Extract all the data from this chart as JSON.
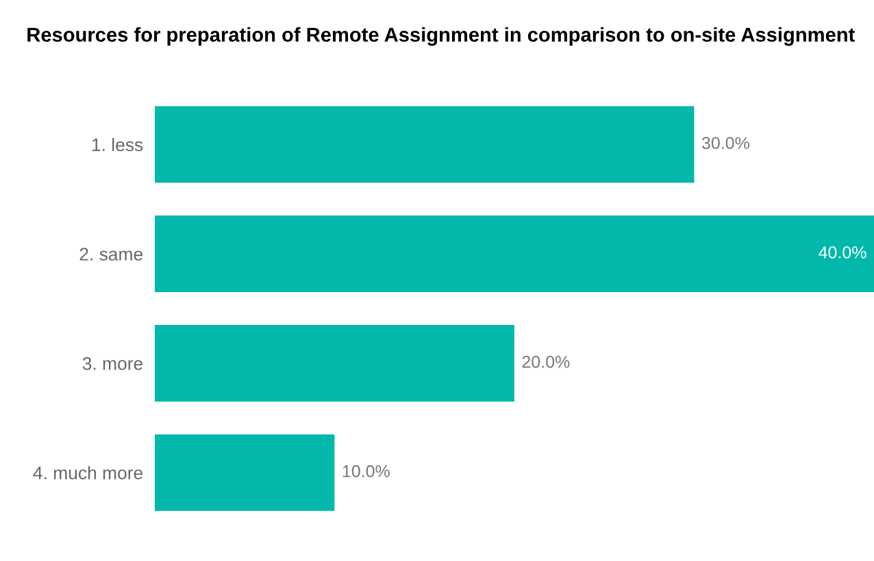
{
  "chart_data": {
    "type": "bar",
    "orientation": "horizontal",
    "title": "Resources for preparation of Remote Assignment in comparison to on-site Assignment",
    "categories": [
      "1. less",
      "2. same",
      "3. more",
      "4. much more"
    ],
    "values": [
      30.0,
      40.0,
      20.0,
      10.0
    ],
    "value_labels": [
      "30.0%",
      "40.0%",
      "20.0%",
      "10.0%"
    ],
    "color": "#01b8aa",
    "grid": false,
    "legend": false
  }
}
